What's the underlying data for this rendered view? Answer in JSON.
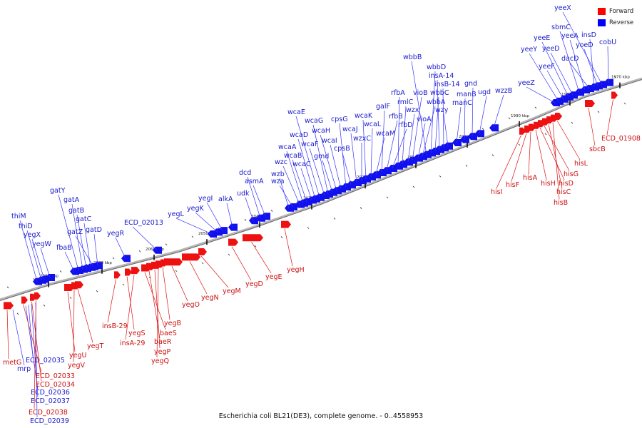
{
  "caption": "Escherichia coli BL21(DE3), complete genome. - 0..4558953",
  "legend": [
    {
      "label": "Forward",
      "color": "#ff0000"
    },
    {
      "label": "Reverse",
      "color": "#0000ff"
    }
  ],
  "colors": {
    "forward": "#ee1111",
    "reverse": "#1111ee",
    "axis": "#999999"
  },
  "axis_ticks": [
    {
      "label": "2080 kbp",
      "kbp": 2080
    },
    {
      "label": "2070 kbp",
      "kbp": 2070
    },
    {
      "label": "2060 kbp",
      "kbp": 2060
    },
    {
      "label": "2050 kbp",
      "kbp": 2050
    },
    {
      "label": "2040 kbp",
      "kbp": 2040
    },
    {
      "label": "2030 kbp",
      "kbp": 2030
    },
    {
      "label": "2020 kbp",
      "kbp": 2020
    },
    {
      "label": "2010 kbp",
      "kbp": 2010
    },
    {
      "label": "2000 kbp",
      "kbp": 2000
    },
    {
      "label": "1990 kbp",
      "kbp": 1990
    },
    {
      "label": "1980 kbp",
      "kbp": 1980
    },
    {
      "label": "1970 kbp",
      "kbp": 1970
    }
  ],
  "reverse_genes": [
    "thiM",
    "thiD",
    "yegX",
    "yegW",
    "fbaB",
    "gatY",
    "gatA",
    "gatB",
    "gatC",
    "gatZ",
    "gatD",
    "yegR",
    "ECD_02013",
    "yegL",
    "yegK",
    "yegI",
    "alkA",
    "udk",
    "dcd",
    "asmA",
    "wzb",
    "wza",
    "wzc",
    "wcaA",
    "wcaB",
    "wcaC",
    "wcaD",
    "wcaE",
    "wcaF",
    "wcaG",
    "gmd",
    "wcaH",
    "wcaI",
    "cpsG",
    "cpsB",
    "wcaJ",
    "wzxC",
    "wcaK",
    "wcaL",
    "wcaM",
    "galF",
    "rfbB",
    "rfbD",
    "rfbA",
    "rmlC",
    "wzx",
    "vioB",
    "vioA",
    "wbbA",
    "wbbB",
    "wbbD",
    "wbbC",
    "insA-14",
    "insB-14",
    "wzy",
    "manC",
    "manB",
    "gnd",
    "ugd",
    "wzzB",
    "yeeZ",
    "yeeY",
    "yeeF",
    "yeeE",
    "yeeD",
    "sbmC",
    "yeeA",
    "dacD",
    "insD",
    "yoeD",
    "yeeX",
    "cobU",
    "mrp",
    "ECD_02035",
    "ECD_02036",
    "ECD_02037",
    "ECD_02039"
  ],
  "forward_genes": [
    "metG",
    "ECD_02033",
    "ECD_02034",
    "ECD_02038",
    "yegU",
    "yegV",
    "yegT",
    "insB-29",
    "yegS",
    "insA-29",
    "baeS",
    "baeR",
    "yegP",
    "yegQ",
    "yegB",
    "yegO",
    "yegN",
    "yegM",
    "yegD",
    "yegE",
    "yegH",
    "hisI",
    "hisF",
    "hisA",
    "hisH",
    "hisD",
    "hisG",
    "hisC",
    "hisB",
    "hisL",
    "sbcB",
    "ECD_01908"
  ]
}
